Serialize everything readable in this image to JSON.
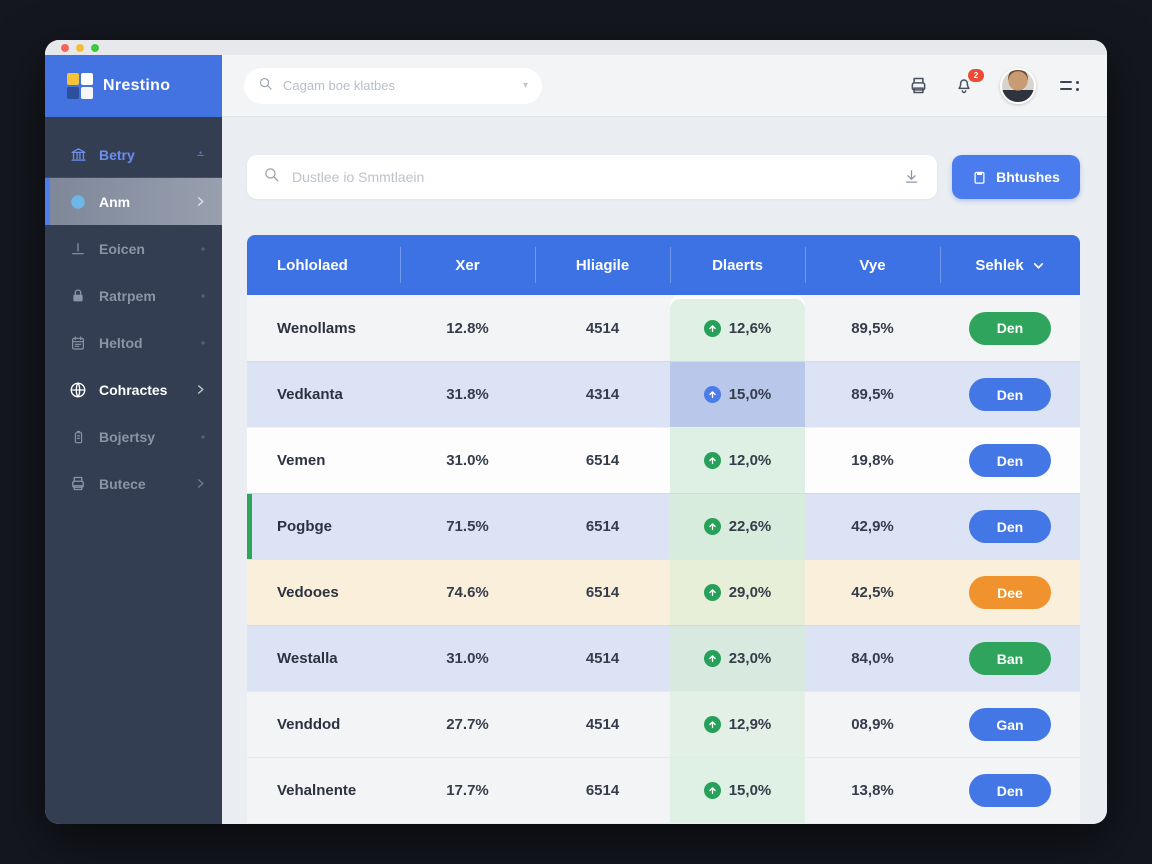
{
  "window": {
    "traffic_lights": [
      "#f5655b",
      "#f6bd3b",
      "#43c645"
    ]
  },
  "brand": {
    "name": "Nrestino",
    "logo_colors": [
      "#f6c23a",
      "#ffffff",
      "#2c4f9e",
      "#f6f6f6"
    ]
  },
  "sidebar": {
    "items": [
      {
        "label": "Betry",
        "icon": "bank-icon",
        "state": "link",
        "end": "dash-icon"
      },
      {
        "label": "Anm",
        "icon": "dot-icon",
        "state": "active",
        "end": "chevron-right-icon"
      },
      {
        "label": "Eoicen",
        "icon": "upload-icon",
        "state": "muted",
        "end": "dot-small"
      },
      {
        "label": "Ratrpem",
        "icon": "lock-icon",
        "state": "muted",
        "end": "dot-small"
      },
      {
        "label": "Heltod",
        "icon": "calendar-icon",
        "state": "muted",
        "end": "dot-small"
      },
      {
        "label": "Cohractes",
        "icon": "globe-icon",
        "state": "selected",
        "end": "chevron-right-icon"
      },
      {
        "label": "Bojertsy",
        "icon": "battery-icon",
        "state": "muted",
        "end": "dot-small"
      },
      {
        "label": "Butece",
        "icon": "printer-icon",
        "state": "muted",
        "end": "chevron-right-icon"
      }
    ]
  },
  "topbar": {
    "search_placeholder": "Cagam boe klatbes",
    "notification_count": "2",
    "icons": [
      "printer-icon",
      "bell-icon",
      "avatar",
      "menu-icon"
    ]
  },
  "toolbar": {
    "search_placeholder": "Dustlee io Smmtlaein",
    "download_icon": "download-icon",
    "button_label": "Bhtushes",
    "button_icon": "clipboard-icon"
  },
  "table": {
    "columns": [
      "Lohlolaed",
      "Xer",
      "Hliagile",
      "Dlaerts",
      "Vye",
      "Sehlek"
    ],
    "sort_column": "Sehlek",
    "rows": [
      {
        "name": "Wenollams",
        "xer": "12.8%",
        "hliagile": "4514",
        "dlaerts": "12,6%",
        "dlaerts_color": "green",
        "dlaerts_bg": "#e0f0e5",
        "vye": "89,5%",
        "action": "Den",
        "action_color": "green",
        "row_bg": "plain",
        "left_bar": false
      },
      {
        "name": "Vedkanta",
        "xer": "31.8%",
        "hliagile": "4314",
        "dlaerts": "15,0%",
        "dlaerts_color": "blue",
        "dlaerts_bg": "#b9c7ea",
        "vye": "89,5%",
        "action": "Den",
        "action_color": "blue",
        "row_bg": "blue",
        "left_bar": false
      },
      {
        "name": "Vemen",
        "xer": "31.0%",
        "hliagile": "6514",
        "dlaerts": "12,0%",
        "dlaerts_color": "green",
        "dlaerts_bg": "#def0e4",
        "vye": "19,8%",
        "action": "Den",
        "action_color": "blue",
        "row_bg": "white",
        "left_bar": false
      },
      {
        "name": "Pogbge",
        "xer": "71.5%",
        "hliagile": "6514",
        "dlaerts": "22,6%",
        "dlaerts_color": "green",
        "dlaerts_bg": "#d7ecdd",
        "vye": "42,9%",
        "action": "Den",
        "action_color": "blue",
        "row_bg": "blue",
        "left_bar": true
      },
      {
        "name": "Vedooes",
        "xer": "74.6%",
        "hliagile": "6514",
        "dlaerts": "29,0%",
        "dlaerts_color": "green",
        "dlaerts_bg": "#e7efd8",
        "vye": "42,5%",
        "action": "Dee",
        "action_color": "orange",
        "row_bg": "cream",
        "left_bar": false
      },
      {
        "name": "Westalla",
        "xer": "31.0%",
        "hliagile": "4514",
        "dlaerts": "23,0%",
        "dlaerts_color": "green",
        "dlaerts_bg": "#d8eadf",
        "vye": "84,0%",
        "action": "Ban",
        "action_color": "green",
        "row_bg": "blue",
        "left_bar": false
      },
      {
        "name": "Venddod",
        "xer": "27.7%",
        "hliagile": "4514",
        "dlaerts": "12,9%",
        "dlaerts_color": "green",
        "dlaerts_bg": "#e2f0e6",
        "vye": "08,9%",
        "action": "Gan",
        "action_color": "blue",
        "row_bg": "plain",
        "left_bar": false
      },
      {
        "name": "Vehalnente",
        "xer": "17.7%",
        "hliagile": "6514",
        "dlaerts": "15,0%",
        "dlaerts_color": "green",
        "dlaerts_bg": "#dff0e5",
        "vye": "13,8%",
        "action": "Den",
        "action_color": "blue",
        "row_bg": "plain",
        "left_bar": false
      }
    ]
  },
  "colors": {
    "header_blue": "#3d72e4",
    "logo_blue": "#4273e0",
    "sidebar_dark": "#333e52",
    "accent_green": "#2fa45c",
    "accent_orange": "#f0922d",
    "accent_blue": "#4377e6",
    "badge_red": "#ee4b35"
  }
}
